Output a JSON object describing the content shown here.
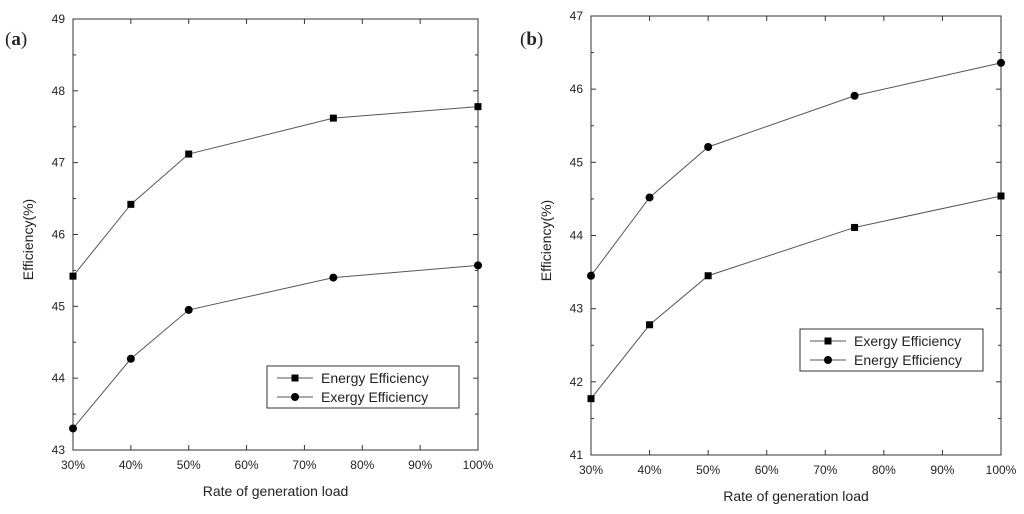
{
  "chart_data": [
    {
      "type": "line",
      "panel_label": "(a)",
      "panel_letter": "a",
      "x": [
        30,
        40,
        50,
        75,
        100
      ],
      "xlim": [
        30,
        100
      ],
      "xticks": [
        "30%",
        "40%",
        "50%",
        "60%",
        "70%",
        "80%",
        "90%",
        "100%"
      ],
      "ylim": [
        43,
        49
      ],
      "yticks": [
        "43",
        "44",
        "45",
        "46",
        "47",
        "48",
        "49"
      ],
      "xlabel": "Rate of generation load",
      "ylabel": "Efficiency(%)",
      "legend_position": "bottom-right",
      "series": [
        {
          "name": "Energy Efficiency",
          "marker": "square",
          "values": [
            45.42,
            46.42,
            47.12,
            47.62,
            47.78
          ]
        },
        {
          "name": "Exergy Efficiency",
          "marker": "circle",
          "values": [
            43.3,
            44.27,
            44.95,
            45.4,
            45.57
          ]
        }
      ]
    },
    {
      "type": "line",
      "panel_label": "(b)",
      "panel_letter": "b",
      "x": [
        30,
        40,
        50,
        75,
        100
      ],
      "xlim": [
        30,
        100
      ],
      "xticks": [
        "30%",
        "40%",
        "50%",
        "60%",
        "70%",
        "80%",
        "90%",
        "100%"
      ],
      "ylim": [
        41,
        47
      ],
      "yticks": [
        "41",
        "42",
        "43",
        "44",
        "45",
        "46",
        "47"
      ],
      "xlabel": "Rate of generation load",
      "ylabel": "Efficiency(%)",
      "legend_position": "center-right",
      "series": [
        {
          "name": "Exergy Efficiency",
          "marker": "square",
          "values": [
            41.77,
            42.78,
            43.45,
            44.11,
            44.54
          ]
        },
        {
          "name": "Energy Efficiency",
          "marker": "circle",
          "values": [
            43.45,
            44.52,
            45.21,
            45.91,
            46.36
          ]
        }
      ]
    }
  ]
}
